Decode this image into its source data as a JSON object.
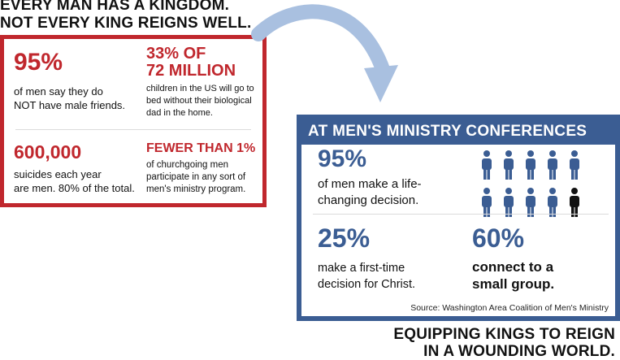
{
  "headline": {
    "line1": "EVERY MAN HAS A KINGDOM.",
    "line2": "NOT EVERY KING REIGNS WELL."
  },
  "red_box": {
    "stat1": {
      "num": "95%",
      "text1": "of men say they do",
      "text2": "NOT have male friends."
    },
    "stat2": {
      "num1": "33% OF",
      "num2": "72 MILLION",
      "text1": "children in the US will go to",
      "text2": "bed without their biological",
      "text3": "dad in the home."
    },
    "stat3": {
      "num": "600,000",
      "text1": "suicides each year",
      "text2": "are men. 80% of the total."
    },
    "stat4": {
      "num": "FEWER THAN 1%",
      "text1": "of churchgoing men",
      "text2": "participate in any sort of",
      "text3": "men's ministry program."
    }
  },
  "blue_box": {
    "header": "AT MEN'S MINISTRY CONFERENCES",
    "stat1": {
      "num": "95%",
      "text1": "of men make a life-",
      "text2": "changing decision."
    },
    "stat2": {
      "num": "25%",
      "text1": "make a first-time",
      "text2": "decision for Christ."
    },
    "stat3": {
      "num": "60%",
      "text1": "connect to a",
      "text2": "small group."
    },
    "people": {
      "total": 10,
      "highlighted": 9
    },
    "source": "Source: Washington Area Coalition of Men's Ministry"
  },
  "footer": {
    "line1": "EQUIPPING KINGS TO REIGN",
    "line2": "IN A WOUNDING WORLD."
  },
  "colors": {
    "red": "#c0272d",
    "blue": "#3b5d93",
    "arrow": "#a9c0e0",
    "person_blue": "#3b5d93",
    "person_dark": "#111111"
  },
  "icons": {
    "arrow": "curved-arrow-icon",
    "person": "person-icon"
  }
}
